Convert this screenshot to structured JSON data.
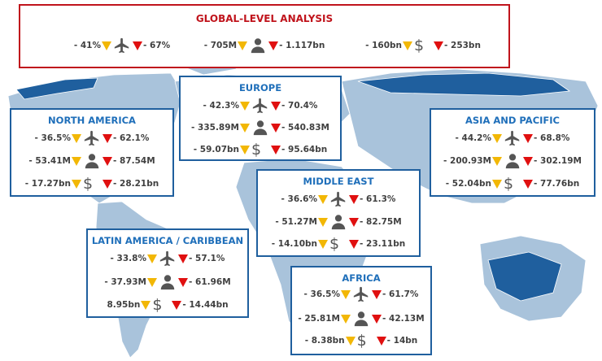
{
  "global": {
    "title": "GLOBAL-LEVEL ANALYSIS",
    "flights": {
      "left": "- 41%",
      "right": "- 67%"
    },
    "passengers": {
      "left": "- 705M",
      "right": "- 1.117bn"
    },
    "revenue": {
      "left": "- 160bn",
      "right": "- 253bn"
    }
  },
  "regions": {
    "north_america": {
      "title": "NORTH AMERICA",
      "flights": {
        "left": "- 36.5%",
        "right": "- 62.1%"
      },
      "passengers": {
        "left": "- 53.41M",
        "right": "- 87.54M"
      },
      "revenue": {
        "left": "- 17.27bn",
        "right": "- 28.21bn"
      }
    },
    "europe": {
      "title": "EUROPE",
      "flights": {
        "left": "- 42.3%",
        "right": "- 70.4%"
      },
      "passengers": {
        "left": "- 335.89M",
        "right": "- 540.83M"
      },
      "revenue": {
        "left": "- 59.07bn",
        "right": "- 95.64bn"
      }
    },
    "asia_pacific": {
      "title": "ASIA AND PACIFIC",
      "flights": {
        "left": "- 44.2%",
        "right": "- 68.8%"
      },
      "passengers": {
        "left": "- 200.93M",
        "right": "- 302.19M"
      },
      "revenue": {
        "left": "- 52.04bn",
        "right": "- 77.76bn"
      }
    },
    "middle_east": {
      "title": "MIDDLE EAST",
      "flights": {
        "left": "- 36.6%",
        "right": "- 61.3%"
      },
      "passengers": {
        "left": "- 51.27M",
        "right": "- 82.75M"
      },
      "revenue": {
        "left": "- 14.10bn",
        "right": "- 23.11bn"
      }
    },
    "latin_america": {
      "title": "LATIN AMERICA / CARIBBEAN",
      "flights": {
        "left": "- 33.8%",
        "right": "- 57.1%"
      },
      "passengers": {
        "left": "- 37.93M",
        "right": "- 61.96M"
      },
      "revenue": {
        "left": "8.95bn",
        "right": "- 14.44bn"
      }
    },
    "africa": {
      "title": "AFRICA",
      "flights": {
        "left": "- 36.5%",
        "right": "- 61.7%"
      },
      "passengers": {
        "left": "- 25.81M",
        "right": "- 42.13M"
      },
      "revenue": {
        "left": "- 8.38bn",
        "right": "- 14bn"
      }
    }
  },
  "icons": {
    "flights": "airplane-icon",
    "passengers": "person-icon",
    "revenue": "dollar-icon",
    "lower_marker": "yellow-down-triangle",
    "upper_marker": "red-down-triangle"
  },
  "colors": {
    "map_land": "#a9c3db",
    "map_dark": "#1f5f9e",
    "panel_border": "#1f5f9e",
    "title_blue": "#1f6fba",
    "global_red": "#c0141c",
    "triangle_yellow": "#f2b705",
    "triangle_red": "#e01010"
  }
}
